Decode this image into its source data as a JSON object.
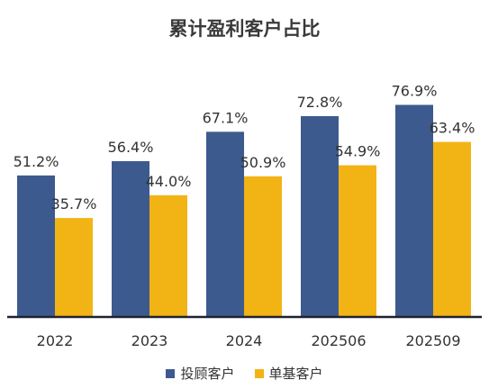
{
  "chart_data": {
    "type": "bar",
    "title": "累计盈利客户占比",
    "xlabel": "",
    "ylabel": "",
    "categories": [
      "2022",
      "2023",
      "2024",
      "202506",
      "202509"
    ],
    "series": [
      {
        "name": "投顾客户",
        "values": [
          51.2,
          56.4,
          67.1,
          72.8,
          76.9
        ],
        "labels": [
          "51.2%",
          "56.4%",
          "67.1%",
          "72.8%",
          "76.9%"
        ],
        "color": "#3d5a8f"
      },
      {
        "name": "单基客户",
        "values": [
          35.7,
          44.0,
          50.9,
          54.9,
          63.4
        ],
        "labels": [
          "35.7%",
          "44.0%",
          "50.9%",
          "54.9%",
          "63.4%"
        ],
        "color": "#f2b315"
      }
    ],
    "ylim": [
      0,
      100
    ],
    "grid": false,
    "legend_position": "bottom"
  }
}
